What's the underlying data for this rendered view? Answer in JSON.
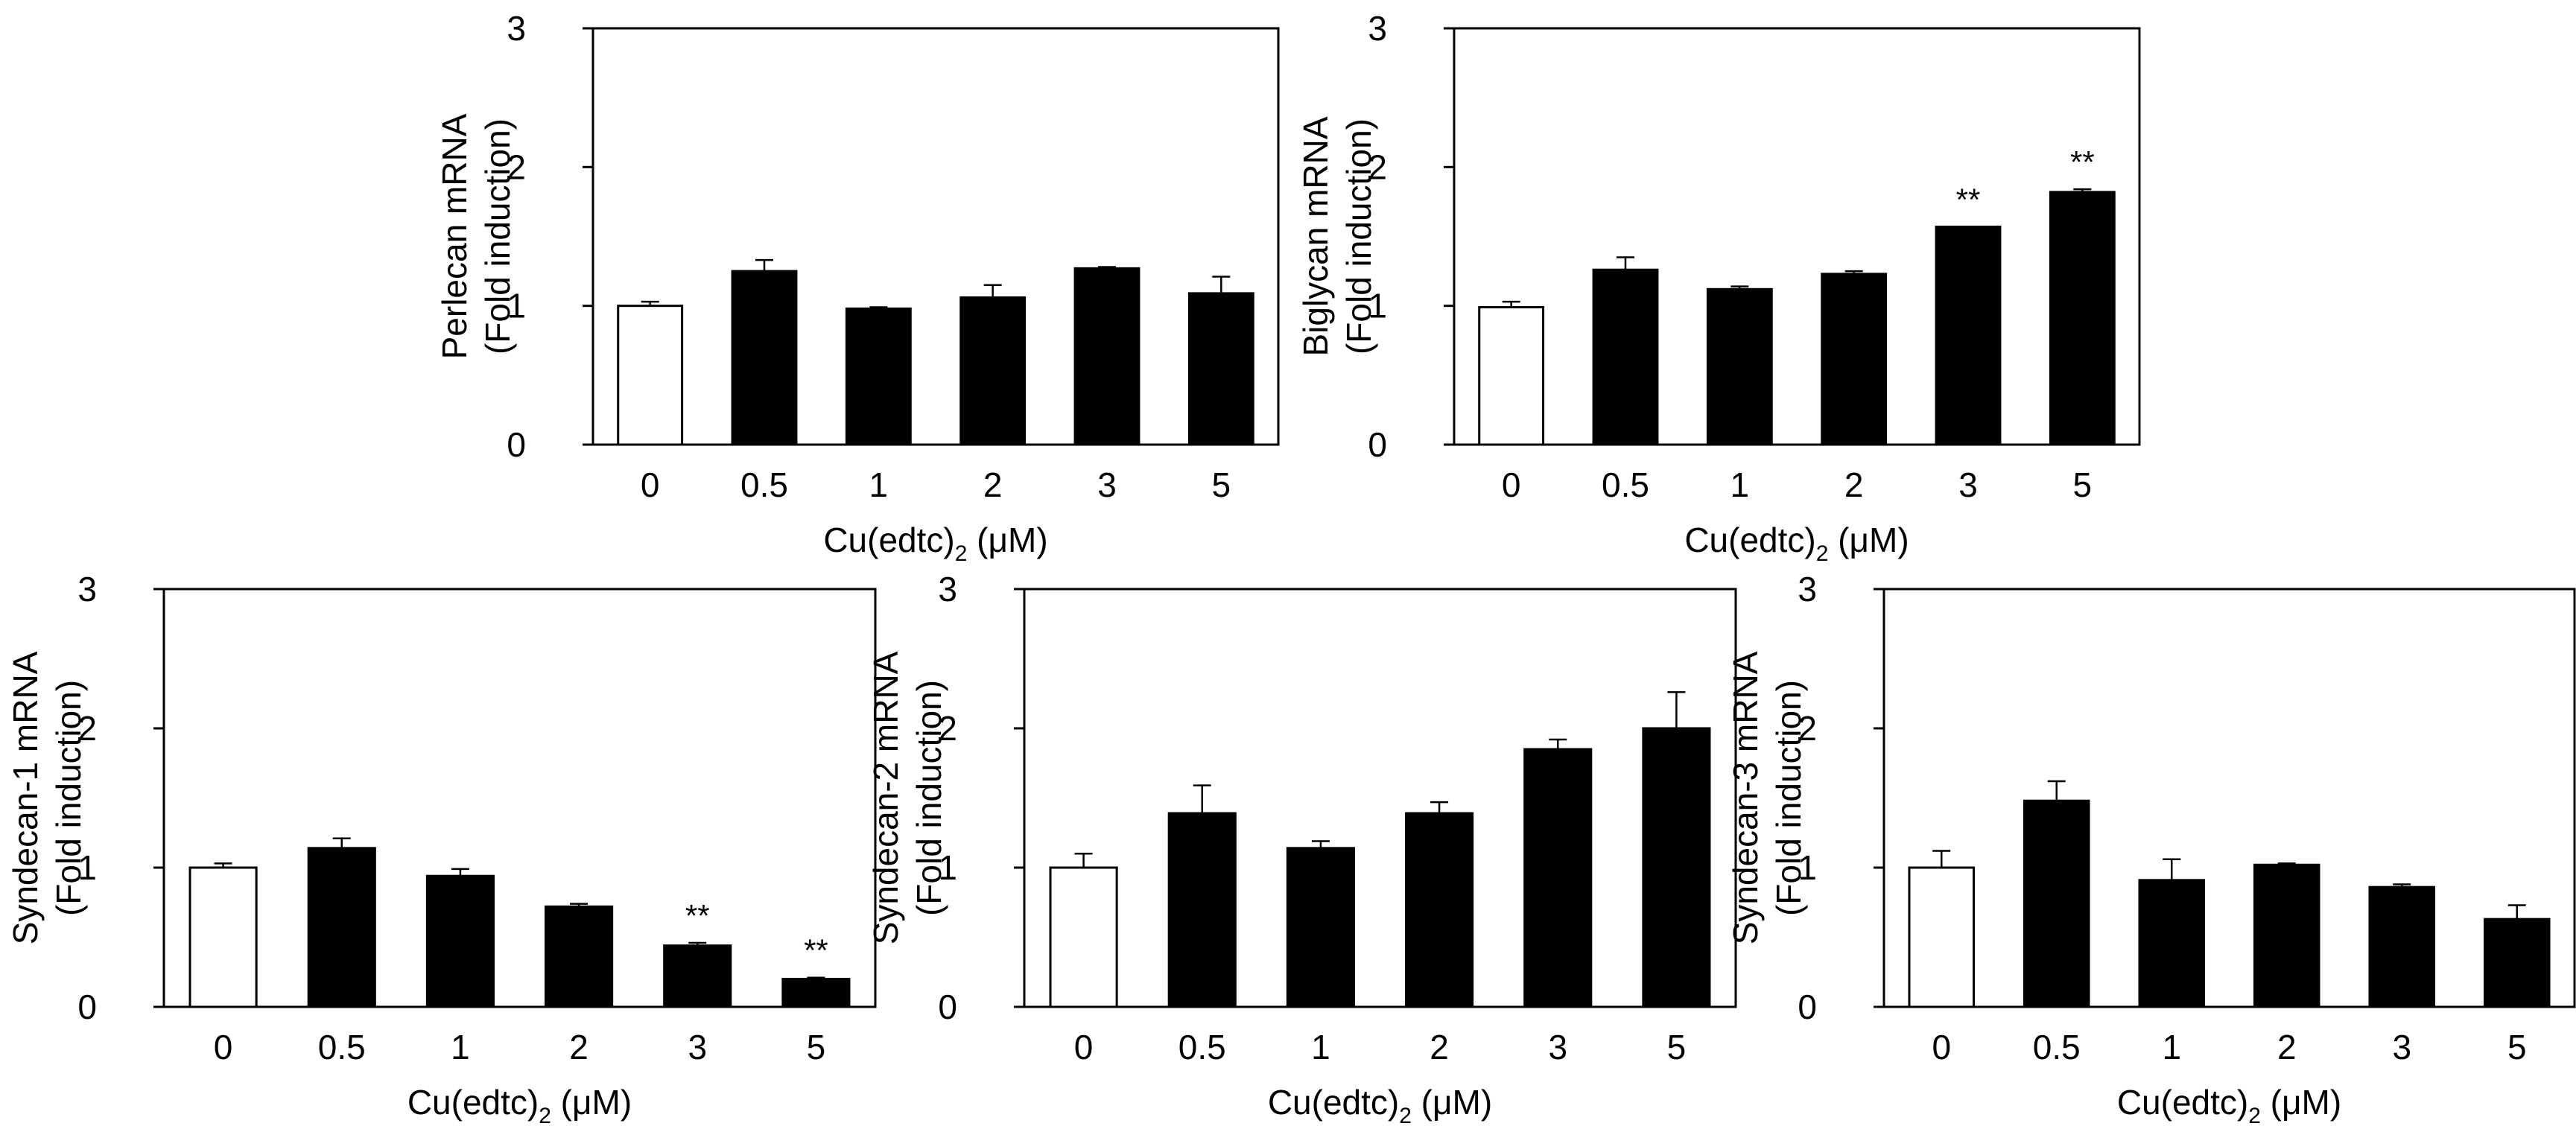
{
  "chart_data": [
    {
      "type": "bar",
      "id": "perlecan",
      "ylabel_line1": "Perlecan mRNA",
      "ylabel_line2": "(Fold induction)",
      "xlabel_main": "Cu(edtc)",
      "xlabel_sub": "2",
      "xlabel_unit": " (μM)",
      "categories": [
        "0",
        "0.5",
        "1",
        "2",
        "3",
        "5"
      ],
      "values": [
        1.0,
        1.25,
        0.98,
        1.06,
        1.27,
        1.09
      ],
      "errors": [
        0.03,
        0.08,
        0.01,
        0.09,
        0.01,
        0.12
      ],
      "fills": [
        "#ffffff",
        "#000000",
        "#000000",
        "#000000",
        "#000000",
        "#000000"
      ],
      "significance": [
        "",
        "",
        "",
        "",
        "",
        ""
      ],
      "ylim": [
        0,
        3
      ],
      "yticks": [
        "0",
        "1",
        "2",
        "3"
      ]
    },
    {
      "type": "bar",
      "id": "biglycan",
      "ylabel_line1": "Biglycan mRNA",
      "ylabel_line2": "(Fold induction)",
      "xlabel_main": "Cu(edtc)",
      "xlabel_sub": "2",
      "xlabel_unit": " (μM)",
      "categories": [
        "0",
        "0.5",
        "1",
        "2",
        "3",
        "5"
      ],
      "values": [
        0.99,
        1.26,
        1.12,
        1.23,
        1.57,
        1.82
      ],
      "errors": [
        0.04,
        0.09,
        0.02,
        0.02,
        0.0,
        0.02
      ],
      "fills": [
        "#ffffff",
        "#000000",
        "#000000",
        "#000000",
        "#000000",
        "#000000"
      ],
      "significance": [
        "",
        "",
        "",
        "",
        "**",
        "**"
      ],
      "ylim": [
        0,
        3
      ],
      "yticks": [
        "0",
        "1",
        "2",
        "3"
      ]
    },
    {
      "type": "bar",
      "id": "syndecan1",
      "ylabel_line1": "Syndecan-1 mRNA",
      "ylabel_line2": "(Fold induction)",
      "xlabel_main": "Cu(edtc)",
      "xlabel_sub": "2",
      "xlabel_unit": " (μM)",
      "categories": [
        "0",
        "0.5",
        "1",
        "2",
        "3",
        "5"
      ],
      "values": [
        1.0,
        1.14,
        0.94,
        0.72,
        0.44,
        0.2
      ],
      "errors": [
        0.03,
        0.07,
        0.05,
        0.02,
        0.02,
        0.01
      ],
      "fills": [
        "#ffffff",
        "#000000",
        "#000000",
        "#000000",
        "#000000",
        "#000000"
      ],
      "significance": [
        "",
        "",
        "",
        "",
        "**",
        "**"
      ],
      "ylim": [
        0,
        3
      ],
      "yticks": [
        "0",
        "1",
        "2",
        "3"
      ]
    },
    {
      "type": "bar",
      "id": "syndecan2",
      "ylabel_line1": "Syndecan-2 mRNA",
      "ylabel_line2": "(Fold induction)",
      "xlabel_main": "Cu(edtc)",
      "xlabel_sub": "2",
      "xlabel_unit": " (μM)",
      "categories": [
        "0",
        "0.5",
        "1",
        "2",
        "3",
        "5"
      ],
      "values": [
        1.0,
        1.39,
        1.14,
        1.39,
        1.85,
        2.0
      ],
      "errors": [
        0.1,
        0.2,
        0.05,
        0.08,
        0.07,
        0.26
      ],
      "fills": [
        "#ffffff",
        "#000000",
        "#000000",
        "#000000",
        "#000000",
        "#000000"
      ],
      "significance": [
        "",
        "",
        "",
        "",
        "",
        ""
      ],
      "ylim": [
        0,
        3
      ],
      "yticks": [
        "0",
        "1",
        "2",
        "3"
      ]
    },
    {
      "type": "bar",
      "id": "syndecan3",
      "ylabel_line1": "Syndecan-3 mRNA",
      "ylabel_line2": "(Fold induction)",
      "xlabel_main": "Cu(edtc)",
      "xlabel_sub": "2",
      "xlabel_unit": " (μM)",
      "categories": [
        "0",
        "0.5",
        "1",
        "2",
        "3",
        "5"
      ],
      "values": [
        1.0,
        1.48,
        0.91,
        1.02,
        0.86,
        0.63
      ],
      "errors": [
        0.12,
        0.14,
        0.15,
        0.01,
        0.02,
        0.1
      ],
      "fills": [
        "#ffffff",
        "#000000",
        "#000000",
        "#000000",
        "#000000",
        "#000000"
      ],
      "significance": [
        "",
        "",
        "",
        "",
        "",
        ""
      ],
      "ylim": [
        0,
        3
      ],
      "yticks": [
        "0",
        "1",
        "2",
        "3"
      ]
    }
  ]
}
